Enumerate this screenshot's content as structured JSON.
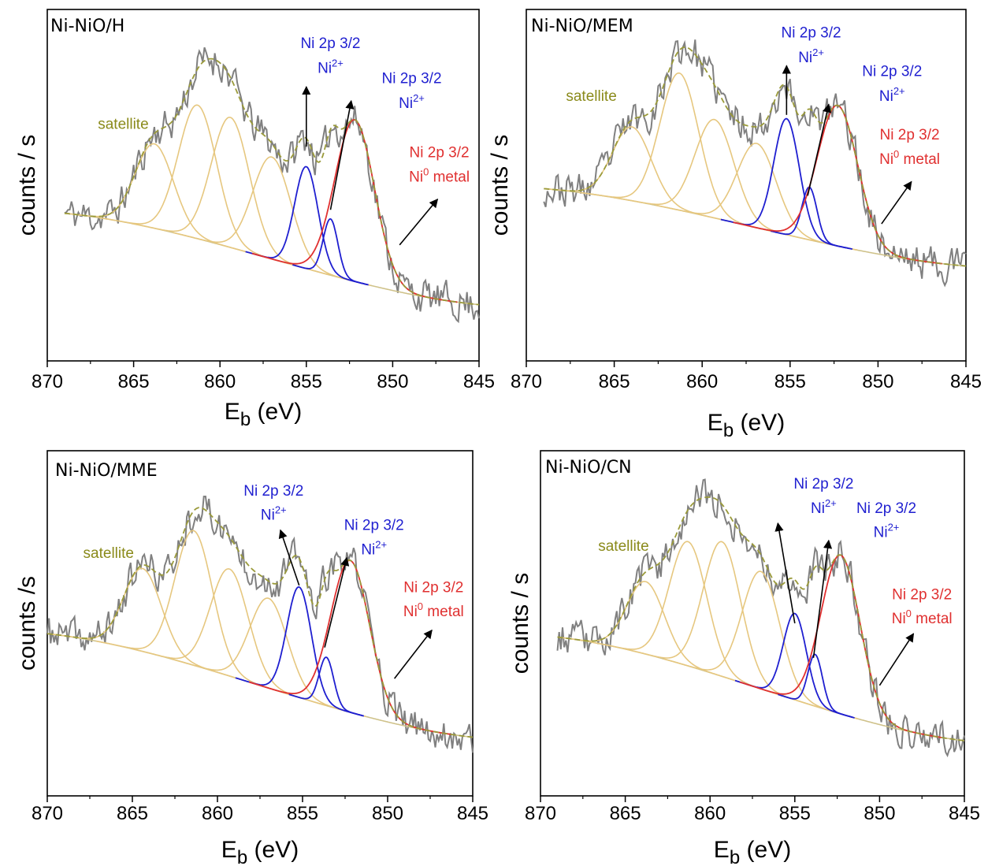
{
  "figure": {
    "colors": {
      "data": "#808080",
      "envelope": "#9a9a3a",
      "satellite_peak": "#e6c77f",
      "ni2_peak": "#1f1fd0",
      "ni0_peak": "#e03030",
      "background": "#cfc28a",
      "arrow": "#000000",
      "satellite_text": "#8a8a1a",
      "ni2_text": "#1f1fd0",
      "ni0_text": "#e03030"
    },
    "x_tick_labels": [
      "870",
      "865",
      "860",
      "855",
      "850",
      "845"
    ],
    "x_title_main": "E",
    "x_title_sub": "b",
    "x_title_unit": "(eV)"
  },
  "chart_data": [
    {
      "type": "line",
      "title": "Ni-NiO/H",
      "ylabel": "counts / s",
      "xlim": [
        870,
        845
      ],
      "x_reversed": true,
      "ylim": [
        0,
        1
      ],
      "yticks_shown": false,
      "grid": false,
      "baseline": {
        "x_start": 869,
        "x_end": 845,
        "y_start": 0.42,
        "y_end": 0.16
      },
      "data_noise_seed": 11,
      "series": [
        {
          "label": "satellite",
          "kind": "satellite",
          "centers": [
            863.8,
            861.3,
            859.4,
            857.0
          ],
          "heights": [
            0.24,
            0.38,
            0.37,
            0.29
          ],
          "fwhm": [
            2.6,
            2.6,
            2.6,
            2.6
          ]
        },
        {
          "label": "Ni 2p 3/2 Ni2+",
          "kind": "ni2",
          "centers": [
            855.0
          ],
          "heights": [
            0.29
          ],
          "fwhm": [
            1.6
          ]
        },
        {
          "label": "Ni 2p 3/2 Ni2+",
          "kind": "ni2",
          "centers": [
            853.6
          ],
          "heights": [
            0.16
          ],
          "fwhm": [
            1.0
          ]
        },
        {
          "label": "Ni 2p 3/2 Ni0 metal",
          "kind": "ni0",
          "centers": [
            852.2
          ],
          "heights": [
            0.46
          ],
          "fwhm": [
            2.7
          ]
        }
      ],
      "annotations": [
        {
          "text": "satellite",
          "sup": "",
          "kind": "satellite",
          "x": 865.6,
          "y": 0.66
        },
        {
          "text": "Ni 2p 3/2",
          "sup": "",
          "kind": "ni2",
          "x": 853.6,
          "y": 0.89
        },
        {
          "text": "Ni",
          "sup": "2+",
          "kind": "ni2",
          "x": 853.6,
          "y": 0.82
        },
        {
          "text": "Ni 2p 3/2",
          "sup": "",
          "kind": "ni2",
          "x": 848.9,
          "y": 0.79
        },
        {
          "text": "Ni",
          "sup": "2+",
          "kind": "ni2",
          "x": 848.9,
          "y": 0.72
        },
        {
          "text": "Ni 2p 3/2",
          "sup": "",
          "kind": "ni0",
          "x": 847.3,
          "y": 0.58
        },
        {
          "text": "Ni",
          "sup": "0",
          "sup_after": " metal",
          "kind": "ni0",
          "x": 847.3,
          "y": 0.51
        }
      ],
      "arrows": [
        {
          "from": [
            855.0,
            0.61
          ],
          "to": [
            855.0,
            0.78
          ]
        },
        {
          "from": [
            853.6,
            0.43
          ],
          "to": [
            852.4,
            0.74
          ]
        },
        {
          "from": [
            849.6,
            0.33
          ],
          "to": [
            847.4,
            0.46
          ]
        }
      ]
    },
    {
      "type": "line",
      "title": "Ni-NiO/MEM",
      "ylabel": "counts / s",
      "xlim": [
        870,
        845
      ],
      "x_reversed": true,
      "ylim": [
        0,
        1
      ],
      "yticks_shown": false,
      "grid": false,
      "baseline": {
        "x_start": 869,
        "x_end": 845,
        "y_start": 0.49,
        "y_end": 0.27
      },
      "data_noise_seed": 23,
      "series": [
        {
          "label": "satellite",
          "kind": "satellite",
          "centers": [
            864.0,
            861.3,
            859.3,
            856.9
          ],
          "heights": [
            0.21,
            0.39,
            0.28,
            0.24
          ],
          "fwhm": [
            2.6,
            2.6,
            2.6,
            2.6
          ]
        },
        {
          "label": "Ni 2p 3/2 Ni2+",
          "kind": "ni2",
          "centers": [
            855.2
          ],
          "heights": [
            0.33
          ],
          "fwhm": [
            1.7
          ]
        },
        {
          "label": "Ni 2p 3/2 Ni2+",
          "kind": "ni2",
          "centers": [
            853.9
          ],
          "heights": [
            0.15
          ],
          "fwhm": [
            1.0
          ]
        },
        {
          "label": "Ni 2p 3/2 Ni0 metal",
          "kind": "ni0",
          "centers": [
            852.3
          ],
          "heights": [
            0.4
          ],
          "fwhm": [
            2.7
          ]
        }
      ],
      "annotations": [
        {
          "text": "satellite",
          "sup": "",
          "kind": "satellite",
          "x": 866.3,
          "y": 0.74
        },
        {
          "text": "Ni 2p 3/2",
          "sup": "",
          "kind": "ni2",
          "x": 853.8,
          "y": 0.92
        },
        {
          "text": "Ni",
          "sup": "2+",
          "kind": "ni2",
          "x": 853.8,
          "y": 0.85
        },
        {
          "text": "Ni 2p 3/2",
          "sup": "",
          "kind": "ni2",
          "x": 849.2,
          "y": 0.81
        },
        {
          "text": "Ni",
          "sup": "2+",
          "kind": "ni2",
          "x": 849.2,
          "y": 0.74
        },
        {
          "text": "Ni 2p 3/2",
          "sup": "",
          "kind": "ni0",
          "x": 848.2,
          "y": 0.63
        },
        {
          "text": "Ni",
          "sup": "0",
          "sup_after": " metal",
          "kind": "ni0",
          "x": 848.2,
          "y": 0.56
        }
      ],
      "arrows": [
        {
          "from": [
            855.2,
            0.7
          ],
          "to": [
            855.2,
            0.84
          ]
        },
        {
          "from": [
            854.0,
            0.47
          ],
          "to": [
            852.8,
            0.73
          ]
        },
        {
          "from": [
            849.8,
            0.39
          ],
          "to": [
            848.1,
            0.51
          ]
        }
      ]
    },
    {
      "type": "line",
      "title": "Ni-NiO/MME",
      "ylabel": "counts /s",
      "xlim": [
        870,
        845
      ],
      "x_reversed": true,
      "ylim": [
        0,
        1
      ],
      "yticks_shown": false,
      "grid": false,
      "baseline": {
        "x_start": 870,
        "x_end": 845,
        "y_start": 0.47,
        "y_end": 0.17
      },
      "data_noise_seed": 37,
      "series": [
        {
          "label": "satellite",
          "kind": "satellite",
          "centers": [
            864.4,
            861.4,
            859.3,
            857.0
          ],
          "heights": [
            0.24,
            0.39,
            0.31,
            0.26
          ],
          "fwhm": [
            2.6,
            2.6,
            2.6,
            2.6
          ]
        },
        {
          "label": "Ni 2p 3/2 Ni2+",
          "kind": "ni2",
          "centers": [
            855.2
          ],
          "heights": [
            0.32
          ],
          "fwhm": [
            1.7
          ]
        },
        {
          "label": "Ni 2p 3/2 Ni2+",
          "kind": "ni2",
          "centers": [
            853.6
          ],
          "heights": [
            0.14
          ],
          "fwhm": [
            1.0
          ]
        },
        {
          "label": "Ni 2p 3/2 Ni0 metal",
          "kind": "ni0",
          "centers": [
            852.2
          ],
          "heights": [
            0.44
          ],
          "fwhm": [
            2.7
          ]
        }
      ],
      "annotations": [
        {
          "text": "satellite",
          "sup": "",
          "kind": "satellite",
          "x": 866.4,
          "y": 0.69
        },
        {
          "text": "Ni 2p 3/2",
          "sup": "",
          "kind": "ni2",
          "x": 856.7,
          "y": 0.87
        },
        {
          "text": "Ni",
          "sup": "2+",
          "kind": "ni2",
          "x": 856.7,
          "y": 0.8
        },
        {
          "text": "Ni 2p 3/2",
          "sup": "",
          "kind": "ni2",
          "x": 850.8,
          "y": 0.77
        },
        {
          "text": "Ni",
          "sup": "2+",
          "kind": "ni2",
          "x": 850.8,
          "y": 0.7
        },
        {
          "text": "Ni 2p 3/2",
          "sup": "",
          "kind": "ni0",
          "x": 847.3,
          "y": 0.59
        },
        {
          "text": "Ni",
          "sup": "0",
          "sup_after": " metal",
          "kind": "ni0",
          "x": 847.3,
          "y": 0.52
        }
      ],
      "arrows": [
        {
          "from": [
            855.2,
            0.61
          ],
          "to": [
            856.3,
            0.77
          ]
        },
        {
          "from": [
            853.7,
            0.43
          ],
          "to": [
            852.4,
            0.69
          ]
        },
        {
          "from": [
            849.6,
            0.34
          ],
          "to": [
            847.4,
            0.48
          ]
        }
      ]
    },
    {
      "type": "line",
      "title": "Ni-NiO/CN",
      "ylabel": "counts / s",
      "xlim": [
        870,
        845
      ],
      "x_reversed": true,
      "ylim": [
        0,
        1
      ],
      "yticks_shown": false,
      "grid": false,
      "baseline": {
        "x_start": 869,
        "x_end": 845,
        "y_start": 0.46,
        "y_end": 0.16
      },
      "data_noise_seed": 53,
      "series": [
        {
          "label": "satellite",
          "kind": "satellite",
          "centers": [
            863.8,
            861.3,
            859.3,
            857.0
          ],
          "heights": [
            0.21,
            0.36,
            0.39,
            0.34
          ],
          "fwhm": [
            2.6,
            2.6,
            2.6,
            2.6
          ]
        },
        {
          "label": "Ni 2p 3/2 Ni2+",
          "kind": "ni2",
          "centers": [
            855.0
          ],
          "heights": [
            0.25
          ],
          "fwhm": [
            1.6
          ]
        },
        {
          "label": "Ni 2p 3/2 Ni2+",
          "kind": "ni2",
          "centers": [
            853.8
          ],
          "heights": [
            0.15
          ],
          "fwhm": [
            1.0
          ]
        },
        {
          "label": "Ni 2p 3/2 Ni0 metal",
          "kind": "ni0",
          "centers": [
            852.3
          ],
          "heights": [
            0.46
          ],
          "fwhm": [
            2.7
          ]
        }
      ],
      "annotations": [
        {
          "text": "satellite",
          "sup": "",
          "kind": "satellite",
          "x": 865.1,
          "y": 0.71
        },
        {
          "text": "Ni 2p 3/2",
          "sup": "",
          "kind": "ni2",
          "x": 853.3,
          "y": 0.89
        },
        {
          "text": "Ni",
          "sup": "2+",
          "kind": "ni2",
          "x": 853.3,
          "y": 0.82
        },
        {
          "text": "Ni 2p 3/2",
          "sup": "",
          "kind": "ni2",
          "x": 849.6,
          "y": 0.82
        },
        {
          "text": "Ni",
          "sup": "2+",
          "kind": "ni2",
          "x": 849.6,
          "y": 0.75
        },
        {
          "text": "Ni 2p 3/2",
          "sup": "",
          "kind": "ni0",
          "x": 847.5,
          "y": 0.57
        },
        {
          "text": "Ni",
          "sup": "0",
          "sup_after": " metal",
          "kind": "ni0",
          "x": 847.5,
          "y": 0.5
        }
      ],
      "arrows": [
        {
          "from": [
            855.0,
            0.5
          ],
          "to": [
            856.0,
            0.79
          ]
        },
        {
          "from": [
            853.9,
            0.4
          ],
          "to": [
            853.0,
            0.74
          ]
        },
        {
          "from": [
            850.0,
            0.32
          ],
          "to": [
            848.0,
            0.47
          ]
        }
      ]
    }
  ]
}
